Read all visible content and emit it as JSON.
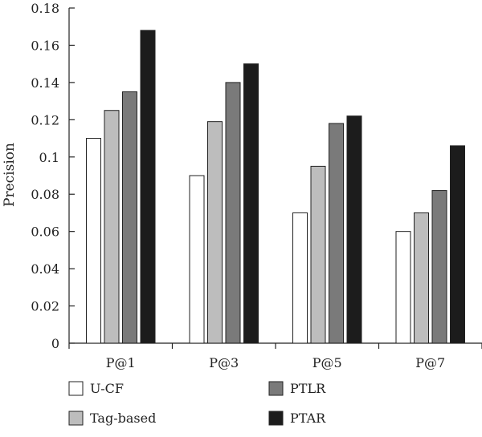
{
  "chart_data": {
    "type": "bar",
    "title": "",
    "xlabel": "",
    "ylabel": "Precision",
    "ylim": [
      0,
      0.18
    ],
    "yticks": [
      0,
      0.02,
      0.04,
      0.06,
      0.08,
      0.1,
      0.12,
      0.14,
      0.16,
      0.18
    ],
    "ytick_labels": [
      "0",
      "0.02",
      "0.04",
      "0.06",
      "0.08",
      "0.1",
      "0.12",
      "0.14",
      "0.16",
      "0.18"
    ],
    "categories": [
      "P@1",
      "P@3",
      "P@5",
      "P@7"
    ],
    "series": [
      {
        "name": "U-CF",
        "color": "#ffffff",
        "values": [
          0.11,
          0.09,
          0.07,
          0.06
        ]
      },
      {
        "name": "Tag-based",
        "color": "#bdbdbd",
        "values": [
          0.125,
          0.119,
          0.095,
          0.07
        ]
      },
      {
        "name": "PTLR",
        "color": "#7a7a7a",
        "values": [
          0.135,
          0.14,
          0.118,
          0.082
        ]
      },
      {
        "name": "PTAR",
        "color": "#1c1c1c",
        "values": [
          0.168,
          0.15,
          0.122,
          0.106
        ]
      }
    ],
    "grid": false,
    "legend_position": "bottom"
  }
}
